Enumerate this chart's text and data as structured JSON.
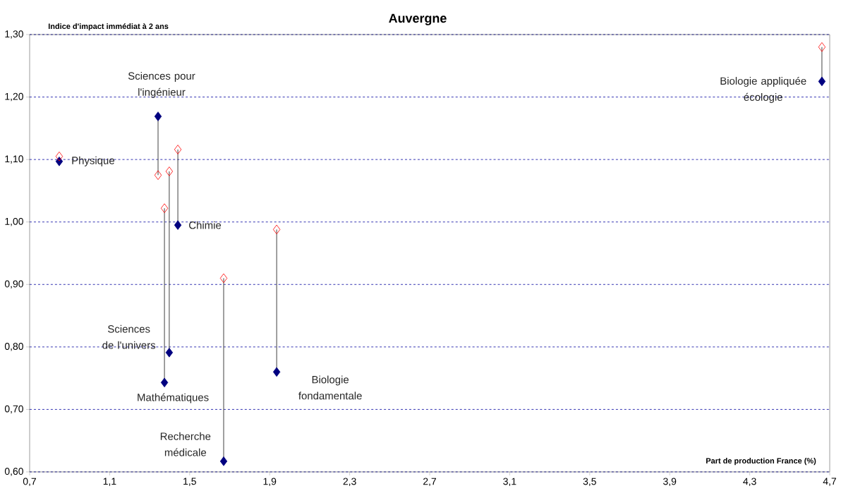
{
  "chart_data": {
    "type": "scatter",
    "title": "Auvergne",
    "xlabel": "Part de production France (%)",
    "ylabel": "Indice d'impact immédiat à 2 ans",
    "x": [
      0.848,
      1.342,
      1.441,
      1.398,
      1.374,
      1.67,
      1.935,
      4.661
    ],
    "series": [
      {
        "color": "#000080",
        "values": [
          1.097,
          1.169,
          0.995,
          0.791,
          0.743,
          0.617,
          0.76,
          1.225
        ]
      },
      {
        "color": "#ff0000",
        "values": [
          1.105,
          1.075,
          1.116,
          1.081,
          1.022,
          0.91,
          0.988,
          1.28
        ]
      },
      {
        "type": "line",
        "marker": "none",
        "color": "#404040",
        "x": [
          1.342,
          1.342
        ],
        "values": [
          1.169,
          1.075
        ]
      },
      {
        "type": "line",
        "marker": "none",
        "color": "#404040",
        "x": [
          1.441,
          1.441
        ],
        "values": [
          0.995,
          1.116
        ]
      },
      {
        "type": "line",
        "marker": "none",
        "color": "#404040",
        "x": [
          1.398,
          1.398
        ],
        "values": [
          0.791,
          1.081
        ]
      },
      {
        "type": "line",
        "marker": "none",
        "color": "#404040",
        "x": [
          1.374,
          1.374
        ],
        "values": [
          0.743,
          1.022
        ]
      },
      {
        "type": "line",
        "marker": "none",
        "color": "#404040",
        "x": [
          1.67,
          1.67
        ],
        "values": [
          0.617,
          0.91
        ]
      },
      {
        "type": "line",
        "marker": "none",
        "color": "#404040",
        "x": [
          1.935,
          1.935
        ],
        "values": [
          0.76,
          0.988
        ]
      },
      {
        "type": "line",
        "marker": "none",
        "color": "#404040",
        "x": [
          4.661,
          4.661
        ],
        "values": [
          1.225,
          1.28
        ]
      }
    ],
    "annotations": [
      {
        "text": "Physique",
        "x": 0.848,
        "y": 1.097
      },
      {
        "text": "Sciences pour l'ingénieur",
        "x": 1.342,
        "y": 1.169
      },
      {
        "text": "Chimie",
        "x": 1.441,
        "y": 0.995
      },
      {
        "text": "Sciences de l'univers",
        "x": 1.398,
        "y": 0.791
      },
      {
        "text": "Mathématiques",
        "x": 1.374,
        "y": 0.743
      },
      {
        "text": "Recherche médicale",
        "x": 1.67,
        "y": 0.617
      },
      {
        "text": "Biologie fondamentale",
        "x": 1.935,
        "y": 0.76
      },
      {
        "text": "Biologie appliquée écologie",
        "x": 4.661,
        "y": 1.225
      }
    ],
    "marker": "diamond",
    "grid": "y",
    "xlim": [
      0.7,
      4.7
    ],
    "ylim": [
      0.6,
      1.3
    ],
    "xticks": [
      {
        "value": 0.7,
        "label": "0,7"
      },
      {
        "value": 1.1,
        "label": "1,1"
      },
      {
        "value": 1.5,
        "label": "1,5"
      },
      {
        "value": 1.9,
        "label": "1,9"
      },
      {
        "value": 2.3,
        "label": "2,3"
      },
      {
        "value": 2.7,
        "label": "2,7"
      },
      {
        "value": 3.1,
        "label": "3,1"
      },
      {
        "value": 3.5,
        "label": "3,5"
      },
      {
        "value": 3.9,
        "label": "3,9"
      },
      {
        "value": 4.3,
        "label": "4,3"
      },
      {
        "value": 4.7,
        "label": "4,7"
      }
    ],
    "yticks": [
      {
        "value": 0.6,
        "label": "0,60"
      },
      {
        "value": 0.7,
        "label": "0,70"
      },
      {
        "value": 0.8,
        "label": "0,80"
      },
      {
        "value": 0.9,
        "label": "0,90"
      },
      {
        "value": 1.0,
        "label": "1,00"
      },
      {
        "value": 1.1,
        "label": "1,10"
      },
      {
        "value": 1.2,
        "label": "1,20"
      },
      {
        "value": 1.3,
        "label": "1,30"
      }
    ]
  }
}
